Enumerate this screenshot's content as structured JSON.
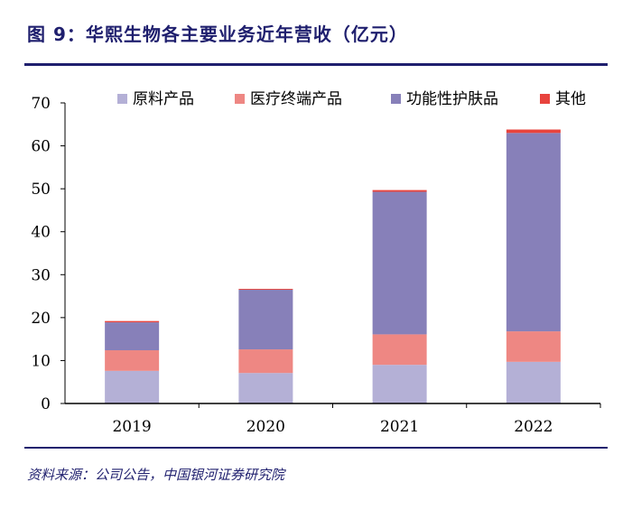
{
  "title": "图 9：华熙生物各主要业务近年营收（亿元）",
  "source": "资料来源：公司公告，中国银河证券研究院",
  "chart_data": {
    "type": "bar",
    "stacked": true,
    "categories": [
      "2019",
      "2020",
      "2021",
      "2022"
    ],
    "series": [
      {
        "name": "原料产品",
        "color": "#b4b0d6",
        "values": [
          7.6,
          7.1,
          9.0,
          9.7
        ]
      },
      {
        "name": "医疗终端产品",
        "color": "#ee8783",
        "values": [
          4.8,
          5.5,
          7.1,
          7.1
        ]
      },
      {
        "name": "功能性护肤品",
        "color": "#8780b9",
        "values": [
          6.5,
          13.9,
          33.2,
          46.2
        ]
      },
      {
        "name": "其他",
        "color": "#e8433d",
        "values": [
          0.3,
          0.2,
          0.4,
          0.8
        ]
      }
    ],
    "ylim": [
      0,
      70
    ],
    "yticks": [
      0,
      10,
      20,
      30,
      40,
      50,
      60,
      70
    ],
    "grid": false,
    "legend": "top"
  }
}
